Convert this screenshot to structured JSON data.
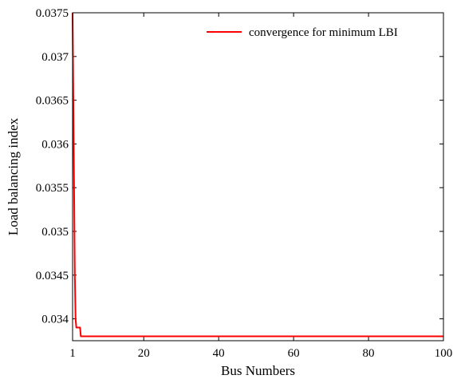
{
  "chart_data": {
    "type": "line",
    "title": "",
    "xlabel": "Bus Numbers",
    "ylabel": "Load balancing index",
    "xlim": [
      1,
      100
    ],
    "ylim": [
      0.03375,
      0.0375
    ],
    "xticks": [
      1,
      20,
      40,
      60,
      80,
      100
    ],
    "xtick_labels": [
      "1",
      "20",
      "40",
      "60",
      "80",
      "100"
    ],
    "yticks": [
      0.034,
      0.0345,
      0.035,
      0.0355,
      0.036,
      0.0365,
      0.037,
      0.0375
    ],
    "ytick_labels": [
      "0.034",
      "0.0345",
      "0.035",
      "0.0355",
      "0.036",
      "0.0365",
      "0.037",
      "0.0375"
    ],
    "grid": false,
    "legend_position": "top-right",
    "series": [
      {
        "name": "convergence for minimum LBI",
        "color": "#ff0000",
        "x": [
          1,
          1.2,
          1.4,
          1.6,
          1.8,
          2.0,
          2.2,
          3.0,
          3.2,
          100
        ],
        "y": [
          0.0375,
          0.0365,
          0.0355,
          0.0345,
          0.034,
          0.0339,
          0.0339,
          0.0339,
          0.0338,
          0.0338
        ]
      }
    ]
  }
}
